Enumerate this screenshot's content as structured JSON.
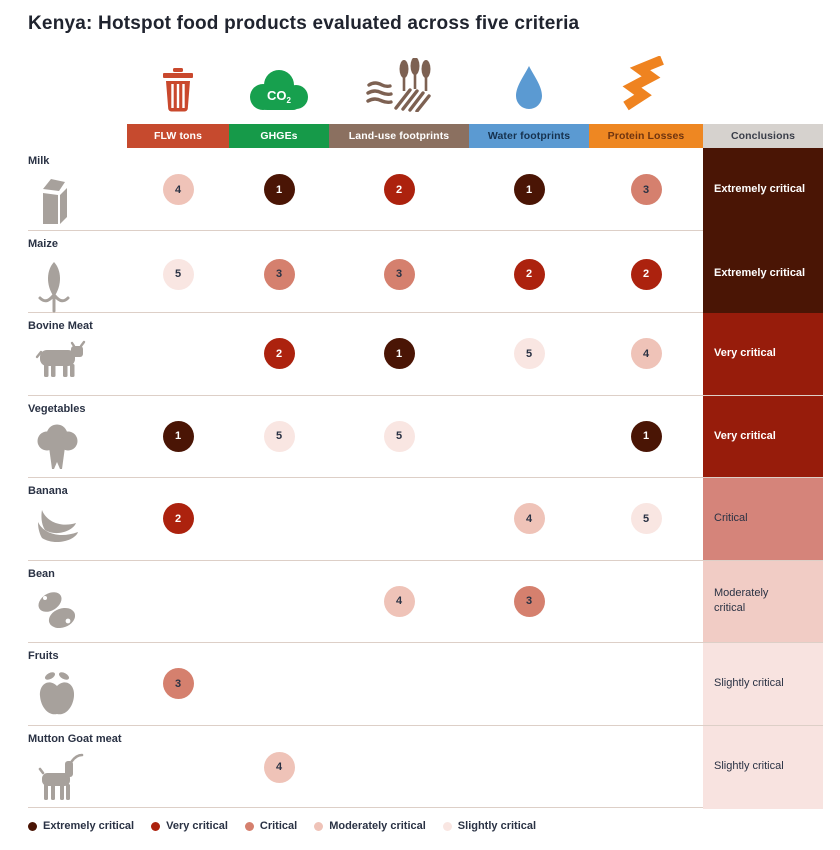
{
  "title": "Kenya: Hotspot food products evaluated across five criteria",
  "columns": [
    {
      "key": "flw",
      "label": "FLW tons",
      "color": "#c64a2e",
      "text_color": "#ffffff",
      "icon": "trash-icon",
      "icon_color": "#c9482d"
    },
    {
      "key": "ghge",
      "label": "GHGEs",
      "color": "#169a49",
      "text_color": "#ffffff",
      "icon": "co2-cloud-icon",
      "icon_color": "#17a04e"
    },
    {
      "key": "land",
      "label": "Land-use footprints",
      "color": "#8b7060",
      "text_color": "#ffffff",
      "icon": "farm-field-icon",
      "icon_color": "#7d6152"
    },
    {
      "key": "water",
      "label": "Water footprints",
      "color": "#5b9ad2",
      "text_color": "#16324f",
      "icon": "water-drop-icon",
      "icon_color": "#5b9ad2"
    },
    {
      "key": "protein",
      "label": "Protein Losses",
      "color": "#ee8722",
      "text_color": "#6f3410",
      "icon": "protein-ribbon-icon",
      "icon_color": "#ef8320"
    },
    {
      "key": "conclusions",
      "label": "Conclusions",
      "color": "#d6d2ce",
      "text_color": "#3a3e49",
      "icon": null,
      "icon_color": null
    }
  ],
  "levels": {
    "1": {
      "name": "Extremely critical",
      "circle": "#4a1505",
      "cell": "#4a1505",
      "text": "#ffffff"
    },
    "2": {
      "name": "Very critical",
      "circle": "#ac220e",
      "cell": "#971c0b",
      "text": "#ffffff"
    },
    "3": {
      "name": "Critical",
      "circle": "#d5806e",
      "cell": "#d5847a",
      "text": "#2a3244"
    },
    "4": {
      "name": "Moderately critical",
      "circle": "#efc3b8",
      "cell": "#f1ccc5",
      "text": "#2a3244"
    },
    "5": {
      "name": "Slightly critical",
      "circle": "#f9e6e2",
      "cell": "#f8e3e0",
      "text": "#2a3244"
    }
  },
  "rows": [
    {
      "product": "Milk",
      "icon": "milk-carton-icon",
      "scores": {
        "flw": 4,
        "ghge": 1,
        "land": 2,
        "water": 1,
        "protein": 3
      },
      "conclusion": {
        "label": "Extremely critical",
        "level": 1
      }
    },
    {
      "product": "Maize",
      "icon": "maize-icon",
      "scores": {
        "flw": 5,
        "ghge": 3,
        "land": 3,
        "water": 2,
        "protein": 2
      },
      "conclusion": {
        "label": "Extremely critical",
        "level": 1
      }
    },
    {
      "product": "Bovine Meat",
      "icon": "cow-icon",
      "scores": {
        "flw": null,
        "ghge": 2,
        "land": 1,
        "water": 5,
        "protein": 4
      },
      "conclusion": {
        "label": "Very critical",
        "level": 2
      }
    },
    {
      "product": "Vegetables",
      "icon": "broccoli-icon",
      "scores": {
        "flw": 1,
        "ghge": 5,
        "land": 5,
        "water": null,
        "protein": 1
      },
      "conclusion": {
        "label": "Very critical",
        "level": 2
      }
    },
    {
      "product": "Banana",
      "icon": "banana-icon",
      "scores": {
        "flw": 2,
        "ghge": null,
        "land": null,
        "water": 4,
        "protein": 5
      },
      "conclusion": {
        "label": "Critical",
        "level": 3
      }
    },
    {
      "product": "Bean",
      "icon": "beans-icon",
      "scores": {
        "flw": null,
        "ghge": null,
        "land": 4,
        "water": 3,
        "protein": null
      },
      "conclusion": {
        "label": "Moderately critical",
        "level": 4
      }
    },
    {
      "product": "Fruits",
      "icon": "apple-icon",
      "scores": {
        "flw": 3,
        "ghge": null,
        "land": null,
        "water": null,
        "protein": null
      },
      "conclusion": {
        "label": "Slightly critical",
        "level": 5
      }
    },
    {
      "product": "Mutton Goat meat",
      "icon": "goat-icon",
      "scores": {
        "flw": null,
        "ghge": 4,
        "land": null,
        "water": null,
        "protein": null
      },
      "conclusion": {
        "label": "Slightly critical",
        "level": 5
      }
    }
  ],
  "legend": [
    {
      "label": "Extremely critical",
      "level": 1
    },
    {
      "label": "Very critical",
      "level": 2
    },
    {
      "label": "Critical",
      "level": 3
    },
    {
      "label": "Moderately critical",
      "level": 4
    },
    {
      "label": "Slightly critical",
      "level": 5
    }
  ],
  "chart_data": {
    "type": "heatmap",
    "title": "Kenya: Hotspot food products evaluated across five criteria",
    "columns": [
      "FLW tons",
      "GHGEs",
      "Land-use footprints",
      "Water footprints",
      "Protein Losses"
    ],
    "rows": [
      "Milk",
      "Maize",
      "Bovine Meat",
      "Vegetables",
      "Banana",
      "Bean",
      "Fruits",
      "Mutton Goat meat"
    ],
    "values": [
      [
        4,
        1,
        2,
        1,
        3
      ],
      [
        5,
        3,
        3,
        2,
        2
      ],
      [
        null,
        2,
        1,
        5,
        4
      ],
      [
        1,
        5,
        5,
        null,
        1
      ],
      [
        2,
        null,
        null,
        4,
        5
      ],
      [
        null,
        null,
        4,
        3,
        null
      ],
      [
        3,
        null,
        null,
        null,
        null
      ],
      [
        null,
        4,
        null,
        null,
        null
      ]
    ],
    "conclusions": [
      "Extremely critical",
      "Extremely critical",
      "Very critical",
      "Very critical",
      "Critical",
      "Moderately critical",
      "Slightly critical",
      "Slightly critical"
    ],
    "rank_scale": {
      "1": "Extremely critical",
      "2": "Very critical",
      "3": "Critical",
      "4": "Moderately critical",
      "5": "Slightly critical"
    },
    "legend": [
      "Extremely critical",
      "Very critical",
      "Critical",
      "Moderately critical",
      "Slightly critical"
    ],
    "legend_position": "bottom"
  }
}
